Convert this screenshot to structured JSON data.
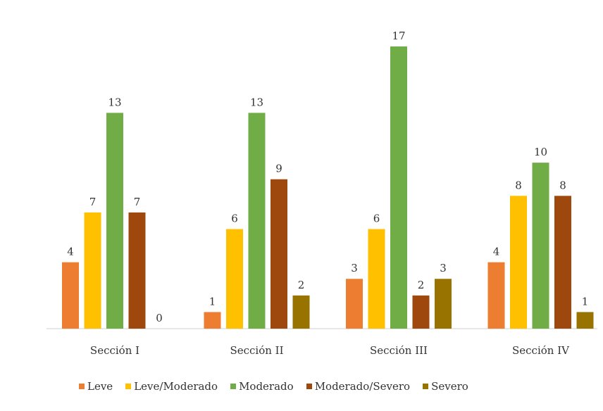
{
  "chart_data": {
    "type": "bar",
    "categories": [
      "Sección I",
      "Sección II",
      "Sección III",
      "Sección IV"
    ],
    "series": [
      {
        "name": "Leve",
        "color": "#ED7D31",
        "values": [
          4,
          1,
          3,
          4
        ]
      },
      {
        "name": "Leve/Moderado",
        "color": "#FFC000",
        "values": [
          7,
          6,
          6,
          8
        ]
      },
      {
        "name": "Moderado",
        "color": "#70AD47",
        "values": [
          13,
          13,
          17,
          10
        ]
      },
      {
        "name": "Moderado/Severo",
        "color": "#9E480E",
        "values": [
          7,
          9,
          2,
          8
        ]
      },
      {
        "name": "Severo",
        "color": "#997300",
        "values": [
          0,
          2,
          3,
          1
        ]
      }
    ],
    "ylim": [
      0,
      17
    ],
    "data_labels": true,
    "grid": false,
    "legend_position": "bottom"
  }
}
